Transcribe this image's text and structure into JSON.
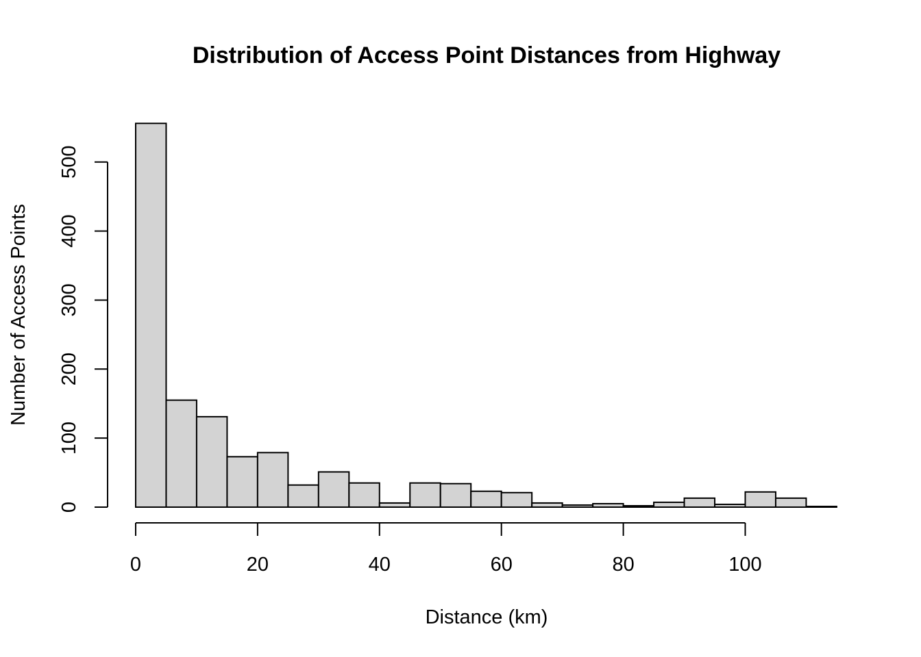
{
  "chart_data": {
    "type": "bar",
    "title": "Distribution of Access Point Distances from Highway",
    "xlabel": "Distance (km)",
    "ylabel": "Number of Access Points",
    "bin_width": 5,
    "bins": [
      {
        "start": 0,
        "end": 5,
        "count": 556
      },
      {
        "start": 5,
        "end": 10,
        "count": 155
      },
      {
        "start": 10,
        "end": 15,
        "count": 131
      },
      {
        "start": 15,
        "end": 20,
        "count": 73
      },
      {
        "start": 20,
        "end": 25,
        "count": 79
      },
      {
        "start": 25,
        "end": 30,
        "count": 32
      },
      {
        "start": 30,
        "end": 35,
        "count": 51
      },
      {
        "start": 35,
        "end": 40,
        "count": 35
      },
      {
        "start": 40,
        "end": 45,
        "count": 6
      },
      {
        "start": 45,
        "end": 50,
        "count": 35
      },
      {
        "start": 50,
        "end": 55,
        "count": 34
      },
      {
        "start": 55,
        "end": 60,
        "count": 23
      },
      {
        "start": 60,
        "end": 65,
        "count": 21
      },
      {
        "start": 65,
        "end": 70,
        "count": 6
      },
      {
        "start": 70,
        "end": 75,
        "count": 3
      },
      {
        "start": 75,
        "end": 80,
        "count": 5
      },
      {
        "start": 80,
        "end": 85,
        "count": 2
      },
      {
        "start": 85,
        "end": 90,
        "count": 7
      },
      {
        "start": 90,
        "end": 95,
        "count": 13
      },
      {
        "start": 95,
        "end": 100,
        "count": 4
      },
      {
        "start": 100,
        "end": 105,
        "count": 22
      },
      {
        "start": 105,
        "end": 110,
        "count": 13
      },
      {
        "start": 110,
        "end": 115,
        "count": 1
      }
    ],
    "xlim": [
      0,
      115
    ],
    "ylim": [
      0,
      556
    ],
    "x_ticks": [
      0,
      20,
      40,
      60,
      80,
      100
    ],
    "y_ticks": [
      0,
      100,
      200,
      300,
      400,
      500
    ],
    "grid": false,
    "legend": "none",
    "colors": {
      "bar_fill": "#d3d3d3",
      "bar_stroke": "#000000",
      "axis": "#000000",
      "background": "#ffffff"
    }
  }
}
